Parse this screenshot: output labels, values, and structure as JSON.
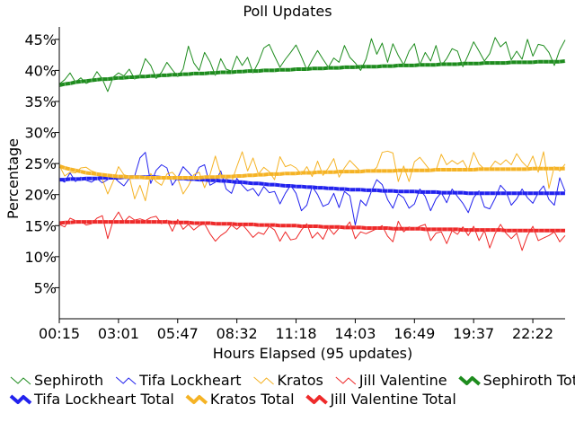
{
  "chart_data": {
    "type": "line",
    "title": "Poll Updates",
    "xlabel": "Hours Elapsed (95 updates)",
    "ylabel": "Percentage",
    "ylim": [
      0,
      47
    ],
    "yticks": [
      5,
      10,
      15,
      20,
      25,
      30,
      35,
      40,
      45
    ],
    "ytick_labels": [
      "5%",
      "10%",
      "15%",
      "20%",
      "25%",
      "30%",
      "35%",
      "40%",
      "45%"
    ],
    "xtick_labels": [
      "00:15",
      "03:01",
      "05:47",
      "08:32",
      "11:18",
      "14:03",
      "16:49",
      "19:37",
      "22:22"
    ],
    "xtick_indices": [
      0,
      11,
      22,
      33,
      44,
      55,
      66,
      77,
      88
    ],
    "n_updates": 95,
    "series": [
      {
        "name": "Sephiroth",
        "color": "#1e8c1e",
        "kind": "thin",
        "legend_row": 0,
        "values": [
          37.8,
          38.5,
          39.6,
          38.1,
          38.8,
          37.9,
          38.3,
          39.8,
          38.6,
          36.6,
          38.9,
          39.6,
          39.1,
          40.2,
          38.6,
          39.3,
          41.9,
          40.8,
          38.7,
          39.7,
          41.3,
          40.1,
          39.0,
          40.2,
          43.9,
          41.2,
          40.0,
          42.9,
          41.4,
          39.2,
          41.9,
          40.2,
          39.9,
          42.3,
          40.8,
          42.1,
          39.6,
          41.3,
          43.6,
          44.2,
          42.3,
          40.5,
          41.8,
          42.9,
          44.1,
          42.2,
          40.1,
          41.7,
          43.2,
          41.8,
          40.5,
          42.0,
          41.3,
          44.0,
          42.1,
          41.2,
          40.0,
          41.8,
          45.1,
          42.6,
          44.4,
          41.3,
          44.3,
          42.4,
          40.9,
          43.1,
          44.3,
          40.9,
          42.9,
          41.5,
          44.0,
          40.8,
          41.9,
          43.5,
          43.1,
          40.6,
          42.5,
          44.6,
          43.1,
          41.5,
          42.7,
          45.3,
          43.8,
          44.6,
          41.7,
          43.1,
          41.8,
          45.0,
          42.3,
          44.2,
          44.0,
          42.9,
          40.8,
          43.3,
          44.9
        ]
      },
      {
        "name": "Tifa Lockheart",
        "color": "#2222ee",
        "kind": "thin",
        "legend_row": 0,
        "values": [
          22.5,
          22.0,
          23.5,
          22.1,
          22.8,
          22.3,
          22.0,
          22.6,
          21.9,
          22.4,
          22.9,
          22.1,
          21.4,
          22.6,
          23.0,
          25.9,
          26.8,
          21.8,
          23.9,
          24.8,
          24.3,
          21.5,
          22.7,
          24.5,
          23.6,
          22.6,
          24.4,
          24.8,
          21.5,
          22.0,
          23.8,
          20.9,
          20.2,
          22.6,
          21.5,
          20.6,
          21.0,
          19.8,
          21.3,
          20.3,
          20.5,
          18.5,
          20.2,
          21.5,
          20.2,
          17.4,
          18.3,
          21.3,
          20.0,
          18.1,
          18.5,
          20.2,
          17.9,
          20.5,
          19.8,
          15.1,
          19.1,
          18.2,
          20.5,
          22.4,
          21.6,
          19.2,
          17.8,
          20.1,
          19.5,
          17.8,
          18.5,
          20.9,
          19.7,
          17.4,
          19.3,
          20.3,
          18.7,
          20.9,
          19.7,
          18.6,
          17.1,
          19.5,
          20.6,
          18.0,
          17.7,
          19.4,
          21.5,
          20.5,
          18.3,
          19.3,
          20.9,
          19.5,
          18.6,
          20.3,
          21.4,
          19.2,
          18.3,
          22.7,
          20.5
        ]
      },
      {
        "name": "Kratos",
        "color": "#f5b325",
        "kind": "thin",
        "legend_row": 0,
        "values": [
          24.7,
          23.0,
          23.6,
          23.5,
          24.3,
          24.4,
          23.8,
          23.5,
          22.5,
          20.1,
          22.1,
          24.5,
          23.2,
          22.9,
          19.3,
          21.5,
          19.0,
          23.4,
          22.1,
          21.5,
          23.3,
          23.6,
          22.6,
          20.1,
          21.4,
          23.2,
          23.6,
          21.1,
          23.2,
          26.2,
          23.2,
          22.6,
          22.0,
          24.5,
          26.9,
          23.8,
          25.9,
          23.3,
          24.4,
          23.7,
          22.4,
          26.1,
          24.5,
          24.8,
          24.3,
          23.2,
          24.5,
          22.9,
          25.4,
          23.1,
          24.3,
          25.8,
          22.8,
          24.3,
          25.5,
          24.6,
          23.7,
          23.7,
          23.6,
          24.4,
          26.8,
          27.0,
          26.7,
          22.1,
          24.6,
          22.1,
          25.3,
          26.0,
          24.9,
          23.8,
          23.9,
          26.5,
          24.8,
          25.5,
          24.9,
          25.5,
          23.9,
          26.8,
          24.9,
          24.1,
          24.2,
          25.4,
          24.8,
          25.6,
          24.8,
          26.6,
          25.3,
          24.4,
          26.2,
          23.6,
          26.9,
          21.0,
          24.5,
          23.8,
          24.9
        ]
      },
      {
        "name": "Jill Valentine",
        "color": "#ee2a2a",
        "kind": "thin",
        "legend_row": 0,
        "values": [
          15.2,
          14.8,
          16.2,
          15.8,
          15.7,
          15.1,
          15.3,
          16.2,
          16.6,
          12.9,
          15.8,
          17.2,
          15.6,
          16.5,
          15.9,
          16.1,
          15.8,
          16.3,
          16.5,
          15.3,
          15.9,
          14.1,
          16.0,
          14.4,
          15.2,
          14.3,
          15.0,
          15.3,
          13.7,
          12.5,
          13.4,
          14.0,
          15.1,
          14.4,
          15.2,
          14.2,
          13.1,
          13.9,
          13.6,
          14.9,
          14.3,
          12.5,
          14.0,
          12.7,
          12.9,
          14.3,
          15.3,
          13.0,
          13.9,
          12.8,
          14.7,
          13.6,
          14.6,
          14.5,
          15.6,
          12.9,
          14.0,
          13.7,
          14.1,
          14.5,
          15.0,
          13.3,
          12.4,
          15.7,
          14.0,
          14.8,
          14.4,
          14.9,
          15.2,
          12.6,
          13.8,
          14.0,
          12.1,
          14.2,
          13.6,
          14.8,
          13.4,
          14.9,
          12.6,
          14.2,
          11.4,
          13.7,
          15.2,
          13.8,
          12.9,
          13.8,
          11.0,
          13.4,
          14.9,
          12.6,
          13.0,
          13.4,
          14.0,
          12.4,
          13.4
        ]
      },
      {
        "name": "Sephiroth Total",
        "color": "#1e8c1e",
        "kind": "total",
        "legend_row": 0,
        "values": [
          37.6,
          37.8,
          37.9,
          38.1,
          38.2,
          38.3,
          38.4,
          38.5,
          38.6,
          38.6,
          38.7,
          38.8,
          38.8,
          38.9,
          38.9,
          39.0,
          39.0,
          39.1,
          39.1,
          39.2,
          39.2,
          39.3,
          39.3,
          39.4,
          39.4,
          39.5,
          39.5,
          39.5,
          39.6,
          39.6,
          39.7,
          39.7,
          39.7,
          39.8,
          39.8,
          39.9,
          39.9,
          39.9,
          40.0,
          40.0,
          40.0,
          40.1,
          40.1,
          40.1,
          40.2,
          40.2,
          40.2,
          40.3,
          40.3,
          40.3,
          40.4,
          40.4,
          40.4,
          40.5,
          40.5,
          40.5,
          40.6,
          40.6,
          40.6,
          40.6,
          40.7,
          40.7,
          40.7,
          40.8,
          40.8,
          40.8,
          40.8,
          40.9,
          40.9,
          40.9,
          40.9,
          41.0,
          41.0,
          41.0,
          41.0,
          41.1,
          41.1,
          41.1,
          41.1,
          41.2,
          41.2,
          41.2,
          41.2,
          41.2,
          41.3,
          41.3,
          41.3,
          41.3,
          41.3,
          41.4,
          41.4,
          41.4,
          41.4,
          41.4,
          41.5
        ]
      },
      {
        "name": "Tifa Lockheart Total",
        "color": "#2222ee",
        "kind": "total",
        "legend_row": 1,
        "values": [
          22.4,
          22.4,
          22.5,
          22.5,
          22.5,
          22.6,
          22.6,
          22.6,
          22.7,
          22.7,
          22.7,
          22.7,
          22.8,
          22.8,
          22.8,
          22.8,
          22.8,
          22.8,
          22.8,
          22.7,
          22.7,
          22.7,
          22.6,
          22.6,
          22.5,
          22.5,
          22.4,
          22.4,
          22.3,
          22.3,
          22.2,
          22.2,
          22.1,
          22.0,
          22.0,
          21.9,
          21.8,
          21.8,
          21.7,
          21.6,
          21.6,
          21.5,
          21.4,
          21.4,
          21.3,
          21.3,
          21.2,
          21.2,
          21.1,
          21.1,
          21.0,
          21.0,
          20.9,
          20.9,
          20.8,
          20.8,
          20.8,
          20.7,
          20.7,
          20.7,
          20.6,
          20.6,
          20.6,
          20.5,
          20.5,
          20.5,
          20.5,
          20.4,
          20.4,
          20.4,
          20.4,
          20.3,
          20.3,
          20.3,
          20.3,
          20.3,
          20.2,
          20.2,
          20.2,
          20.2,
          20.2,
          20.2,
          20.2,
          20.2,
          20.2,
          20.2,
          20.2,
          20.2,
          20.2,
          20.2,
          20.2,
          20.2,
          20.2,
          20.2,
          20.2
        ]
      },
      {
        "name": "Kratos Total",
        "color": "#f5b325",
        "kind": "total",
        "legend_row": 1,
        "values": [
          24.6,
          24.3,
          24.1,
          23.9,
          23.7,
          23.5,
          23.4,
          23.3,
          23.2,
          23.1,
          23.0,
          22.9,
          22.9,
          22.8,
          22.8,
          22.8,
          22.7,
          22.7,
          22.7,
          22.7,
          22.7,
          22.7,
          22.7,
          22.7,
          22.7,
          22.7,
          22.7,
          22.8,
          22.8,
          22.8,
          22.9,
          22.9,
          22.9,
          23.0,
          23.0,
          23.1,
          23.1,
          23.2,
          23.2,
          23.3,
          23.3,
          23.3,
          23.4,
          23.4,
          23.4,
          23.5,
          23.5,
          23.5,
          23.6,
          23.6,
          23.6,
          23.6,
          23.7,
          23.7,
          23.7,
          23.7,
          23.7,
          23.8,
          23.8,
          23.8,
          23.8,
          23.8,
          23.8,
          23.9,
          23.9,
          23.9,
          23.9,
          23.9,
          23.9,
          23.9,
          24.0,
          24.0,
          24.0,
          24.0,
          24.0,
          24.0,
          24.0,
          24.0,
          24.1,
          24.1,
          24.1,
          24.1,
          24.1,
          24.1,
          24.1,
          24.1,
          24.1,
          24.1,
          24.2,
          24.2,
          24.2,
          24.2,
          24.2,
          24.2,
          24.2
        ]
      },
      {
        "name": "Jill Valentine Total",
        "color": "#ee2a2a",
        "kind": "total",
        "legend_row": 1,
        "values": [
          15.4,
          15.5,
          15.5,
          15.6,
          15.6,
          15.6,
          15.6,
          15.6,
          15.6,
          15.6,
          15.6,
          15.6,
          15.6,
          15.6,
          15.6,
          15.6,
          15.6,
          15.6,
          15.6,
          15.6,
          15.6,
          15.5,
          15.5,
          15.5,
          15.5,
          15.4,
          15.4,
          15.4,
          15.4,
          15.3,
          15.3,
          15.3,
          15.3,
          15.2,
          15.2,
          15.2,
          15.2,
          15.1,
          15.1,
          15.1,
          15.1,
          15.0,
          15.0,
          15.0,
          15.0,
          14.9,
          14.9,
          14.9,
          14.9,
          14.8,
          14.8,
          14.8,
          14.8,
          14.7,
          14.7,
          14.7,
          14.7,
          14.6,
          14.6,
          14.6,
          14.6,
          14.6,
          14.5,
          14.5,
          14.5,
          14.5,
          14.5,
          14.5,
          14.4,
          14.4,
          14.4,
          14.4,
          14.4,
          14.4,
          14.4,
          14.3,
          14.3,
          14.3,
          14.3,
          14.3,
          14.3,
          14.3,
          14.3,
          14.2,
          14.2,
          14.2,
          14.2,
          14.2,
          14.2,
          14.2,
          14.2,
          14.2,
          14.2,
          14.2,
          14.2
        ]
      }
    ]
  }
}
